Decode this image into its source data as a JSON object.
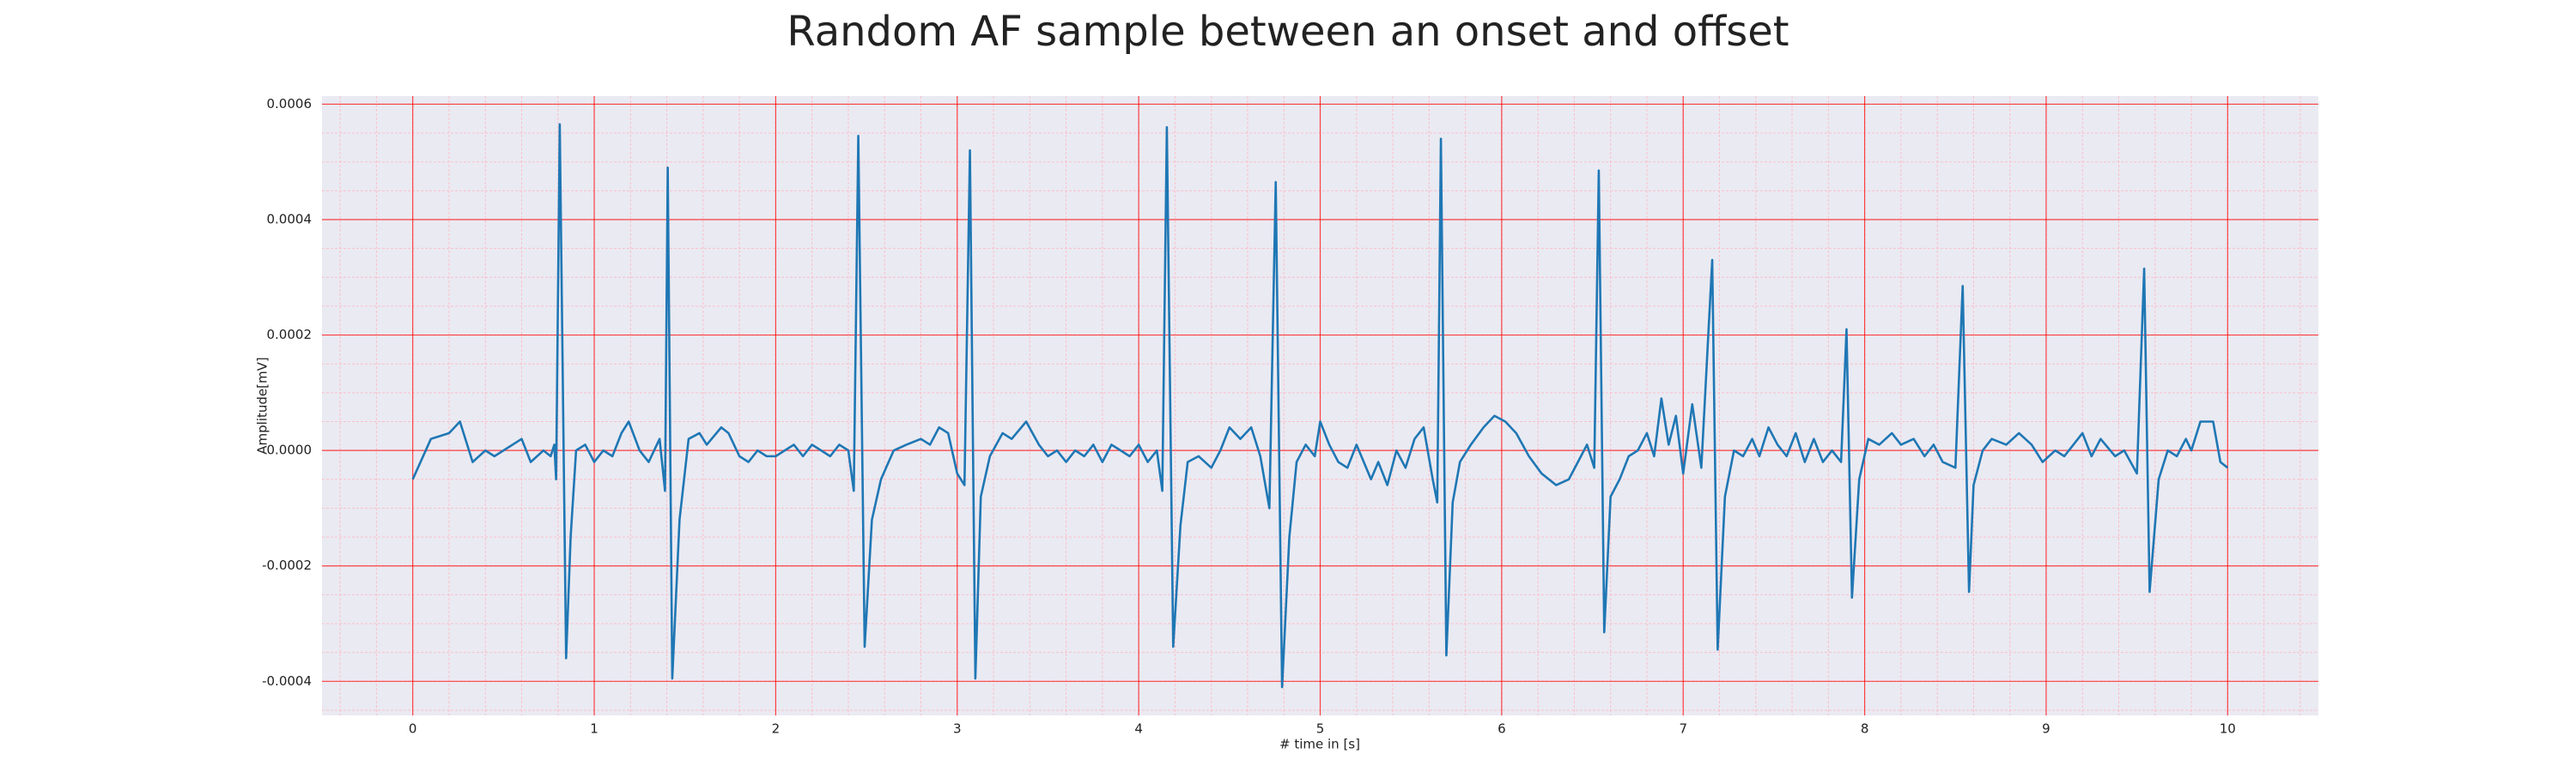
{
  "chart_data": {
    "type": "line",
    "title": "Random AF sample between an onset and offset",
    "x_label": "# time in [s]",
    "y_label": "Amplitude[mV]",
    "color": "#1f77b4",
    "grid": true,
    "grid_color": "#ff0000",
    "minor_grid": {
      "x_step": 0.2,
      "y_step": 5e-05,
      "color": "#ffb6c1"
    },
    "background": "#eaeaf2",
    "xlim": [
      -0.5,
      10.5
    ],
    "ylim": [
      -0.000459,
      0.000614
    ],
    "xticks": [
      0,
      1,
      2,
      3,
      4,
      5,
      6,
      7,
      8,
      9,
      10
    ],
    "yticks": [
      {
        "value": -0.0004,
        "label": "-0.0004"
      },
      {
        "value": -0.0002,
        "label": "-0.0002"
      },
      {
        "value": 0,
        "label": "0.0000"
      },
      {
        "value": 0.0002,
        "label": "0.0002"
      },
      {
        "value": 0.0004,
        "label": "0.0004"
      },
      {
        "value": 0.0006,
        "label": "0.0006"
      }
    ],
    "x": [
      0,
      0.1,
      0.2,
      0.26,
      0.33,
      0.4,
      0.45,
      0.55,
      0.6,
      0.65,
      0.72,
      0.76,
      0.78,
      0.79,
      0.81,
      0.845,
      0.87,
      0.9,
      0.95,
      1.0,
      1.05,
      1.1,
      1.15,
      1.19,
      1.25,
      1.3,
      1.36,
      1.39,
      1.405,
      1.43,
      1.47,
      1.52,
      1.58,
      1.62,
      1.7,
      1.74,
      1.8,
      1.85,
      1.9,
      1.95,
      2.0,
      2.05,
      2.1,
      2.15,
      2.2,
      2.25,
      2.3,
      2.35,
      2.4,
      2.43,
      2.455,
      2.49,
      2.53,
      2.58,
      2.65,
      2.72,
      2.8,
      2.85,
      2.9,
      2.95,
      3.0,
      3.04,
      3.07,
      3.1,
      3.13,
      3.18,
      3.25,
      3.3,
      3.38,
      3.45,
      3.5,
      3.55,
      3.6,
      3.65,
      3.7,
      3.75,
      3.8,
      3.85,
      3.9,
      3.95,
      4.0,
      4.05,
      4.1,
      4.13,
      4.155,
      4.19,
      4.23,
      4.27,
      4.33,
      4.4,
      4.45,
      4.5,
      4.56,
      4.62,
      4.67,
      4.72,
      4.755,
      4.79,
      4.83,
      4.87,
      4.92,
      4.97,
      5.0,
      5.05,
      5.1,
      5.15,
      5.2,
      5.28,
      5.32,
      5.37,
      5.42,
      5.47,
      5.52,
      5.57,
      5.62,
      5.645,
      5.665,
      5.695,
      5.73,
      5.77,
      5.83,
      5.9,
      5.96,
      6.02,
      6.08,
      6.15,
      6.22,
      6.3,
      6.37,
      6.42,
      6.47,
      6.51,
      6.535,
      6.565,
      6.6,
      6.65,
      6.7,
      6.75,
      6.8,
      6.84,
      6.88,
      6.92,
      6.96,
      7.0,
      7.05,
      7.1,
      7.16,
      7.19,
      7.23,
      7.28,
      7.33,
      7.38,
      7.42,
      7.47,
      7.52,
      7.57,
      7.62,
      7.67,
      7.72,
      7.77,
      7.82,
      7.87,
      7.9,
      7.93,
      7.97,
      8.02,
      8.08,
      8.15,
      8.2,
      8.27,
      8.33,
      8.38,
      8.43,
      8.5,
      8.54,
      8.575,
      8.6,
      8.65,
      8.7,
      8.78,
      8.85,
      8.92,
      8.98,
      9.05,
      9.1,
      9.15,
      9.2,
      9.25,
      9.3,
      9.38,
      9.43,
      9.5,
      9.54,
      9.57,
      9.62,
      9.67,
      9.72,
      9.77,
      9.8,
      9.85,
      9.92,
      9.96,
      10.0
    ],
    "values": [
      -5e-05,
      2e-05,
      3e-05,
      5e-05,
      -2e-05,
      0,
      -1e-05,
      1e-05,
      2e-05,
      -2e-05,
      0,
      -1e-05,
      1e-05,
      -5e-05,
      0.000565,
      -0.00036,
      -0.00015,
      0,
      1e-05,
      -2e-05,
      0,
      -1e-05,
      3e-05,
      5e-05,
      0,
      -2e-05,
      2e-05,
      -7e-05,
      0.00049,
      -0.000395,
      -0.00012,
      2e-05,
      3e-05,
      1e-05,
      4e-05,
      3e-05,
      -1e-05,
      -2e-05,
      0,
      -1e-05,
      -1e-05,
      0,
      1e-05,
      -1e-05,
      1e-05,
      0,
      -1e-05,
      1e-05,
      0,
      -7e-05,
      0.000545,
      -0.00034,
      -0.00012,
      -5e-05,
      0,
      1e-05,
      2e-05,
      1e-05,
      4e-05,
      3e-05,
      -4e-05,
      -6e-05,
      0.00052,
      -0.000395,
      -8e-05,
      -1e-05,
      3e-05,
      2e-05,
      5e-05,
      1e-05,
      -1e-05,
      0,
      -2e-05,
      0,
      -1e-05,
      1e-05,
      -2e-05,
      1e-05,
      0,
      -1e-05,
      1e-05,
      -2e-05,
      0,
      -7e-05,
      0.00056,
      -0.00034,
      -0.00013,
      -2e-05,
      -1e-05,
      -3e-05,
      0,
      4e-05,
      2e-05,
      4e-05,
      -1e-05,
      -0.0001,
      0.000465,
      -0.00041,
      -0.00015,
      -2e-05,
      1e-05,
      -1e-05,
      5e-05,
      1e-05,
      -2e-05,
      -3e-05,
      1e-05,
      -5e-05,
      -2e-05,
      -6e-05,
      0,
      -3e-05,
      2e-05,
      4e-05,
      -5e-05,
      -9e-05,
      0.00054,
      -0.000355,
      -9e-05,
      -2e-05,
      1e-05,
      4e-05,
      6e-05,
      5e-05,
      3e-05,
      -1e-05,
      -4e-05,
      -6e-05,
      -5e-05,
      -2e-05,
      1e-05,
      -3e-05,
      0.000485,
      -0.000315,
      -8e-05,
      -5e-05,
      -1e-05,
      0,
      3e-05,
      -1e-05,
      9e-05,
      1e-05,
      6e-05,
      -4e-05,
      8e-05,
      -3e-05,
      0.00033,
      -0.000345,
      -8e-05,
      0,
      -1e-05,
      2e-05,
      -1e-05,
      4e-05,
      1e-05,
      -1e-05,
      3e-05,
      -2e-05,
      2e-05,
      -2e-05,
      0,
      -2e-05,
      0.00021,
      -0.000255,
      -5e-05,
      2e-05,
      1e-05,
      3e-05,
      1e-05,
      2e-05,
      -1e-05,
      1e-05,
      -2e-05,
      -3e-05,
      0.000285,
      -0.000245,
      -6e-05,
      0,
      2e-05,
      1e-05,
      3e-05,
      1e-05,
      -2e-05,
      0,
      -1e-05,
      1e-05,
      3e-05,
      -1e-05,
      2e-05,
      -1e-05,
      0,
      -4e-05,
      0.000315,
      -0.000245,
      -5e-05,
      0,
      -1e-05,
      2e-05,
      0,
      5e-05,
      5e-05,
      -2e-05,
      -3e-05
    ]
  }
}
